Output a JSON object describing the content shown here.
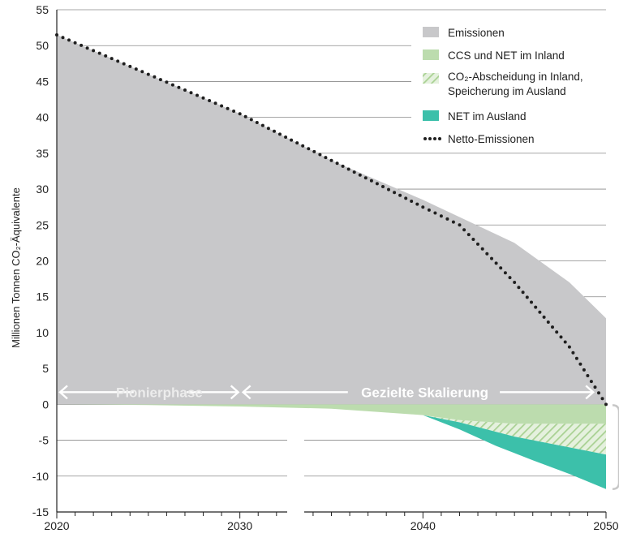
{
  "chart_data": {
    "type": "area",
    "ylabel": "Millionen Tonnen CO₂-Äquivalente",
    "xlim": [
      2020,
      2050
    ],
    "ylim": [
      -15,
      55
    ],
    "x_ticks": [
      2020,
      2030,
      2040,
      2050
    ],
    "y_ticks": [
      -15,
      -10,
      -5,
      0,
      5,
      10,
      15,
      20,
      25,
      30,
      35,
      40,
      45,
      50,
      55
    ],
    "grid": "horizontal",
    "legend_position": "top-right",
    "phases": [
      {
        "label": "Pionierphase",
        "from": 2020,
        "to": 2030
      },
      {
        "label": "Gezielte Skalierung",
        "from": 2030,
        "to": 2049
      }
    ],
    "series": [
      {
        "name": "Emissionen",
        "kind": "area",
        "color": "#c8c8ca",
        "x": [
          2020,
          2025,
          2030,
          2035,
          2040,
          2045,
          2048,
          2050
        ],
        "values": [
          51.5,
          46,
          40.5,
          34,
          28.5,
          22.5,
          17,
          12
        ]
      },
      {
        "name": "CCS und NET im Inland",
        "kind": "area",
        "color": "#bcdcae",
        "x": [
          2020,
          2025,
          2030,
          2035,
          2040,
          2042,
          2045,
          2050
        ],
        "values": [
          0,
          -0.1,
          -0.3,
          -0.6,
          -1.5,
          -2.2,
          -2.7,
          -2.7
        ]
      },
      {
        "name": "CO₂-Abscheidung in Inland, Speicherung im Ausland",
        "kind": "area",
        "color": "#bcdcae",
        "pattern": "hatched",
        "x": [
          2040,
          2042,
          2045,
          2048,
          2050
        ],
        "values": [
          -1.5,
          -2.5,
          -4.5,
          -6,
          -7
        ]
      },
      {
        "name": "NET im Ausland",
        "kind": "area",
        "color": "#3cc0aa",
        "x": [
          2040,
          2042,
          2044,
          2046,
          2048,
          2050
        ],
        "values": [
          -1.5,
          -3.5,
          -5.8,
          -7.8,
          -9.7,
          -11.8
        ]
      },
      {
        "name": "Netto-Emissionen",
        "kind": "line",
        "style": "dotted",
        "color": "#1f1f1f",
        "x": [
          2020,
          2025,
          2030,
          2035,
          2040,
          2042,
          2045,
          2048,
          2050
        ],
        "values": [
          51.5,
          46,
          40.5,
          34,
          27.5,
          25,
          17,
          8,
          0
        ]
      }
    ]
  }
}
